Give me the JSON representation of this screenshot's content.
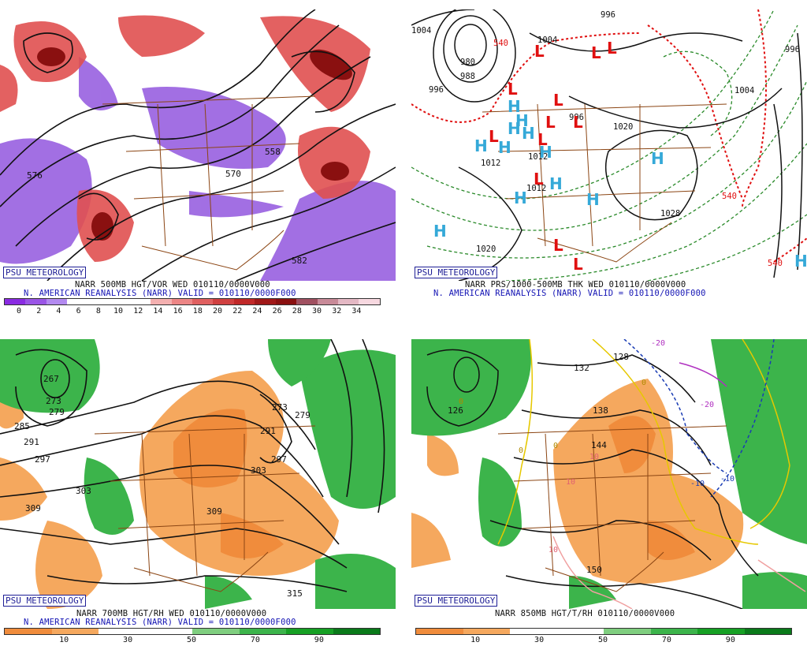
{
  "badge": "PSU METEOROLOGY",
  "panels": [
    {
      "caption": "NARR 500MB HGT/VOR WED 010110/0000V000",
      "subcaption": "N. AMERICAN REANALYSIS (NARR) VALID = 010110/0000F000",
      "scale_ticks": [
        "0",
        "2",
        "4",
        "6",
        "8",
        "10",
        "12",
        "14",
        "16",
        "18",
        "20",
        "22",
        "24",
        "26",
        "28",
        "30",
        "32",
        "34"
      ],
      "contour_labels": [
        "576",
        "558",
        "570",
        "582"
      ]
    },
    {
      "caption": "NARR PRS/1000-500MB THK WED 010110/0000V000",
      "subcaption": "N. AMERICAN REANALYSIS (NARR) VALID = 010110/0000F000",
      "contour_labels": [
        "1004",
        "980",
        "988",
        "996",
        "1004",
        "996",
        "1012",
        "1012",
        "1020",
        "1020",
        "1028",
        "540",
        "540",
        "540",
        "996",
        "1004",
        "996",
        "1012"
      ]
    },
    {
      "caption": "NARR 700MB HGT/RH WED 010110/0000V000",
      "subcaption": "N. AMERICAN REANALYSIS (NARR) VALID = 010110/0000F000",
      "scale_ticks": [
        "10",
        "30",
        "50",
        "70",
        "90"
      ],
      "contour_labels": [
        "267",
        "273",
        "279",
        "285",
        "291",
        "297",
        "303",
        "309",
        "309",
        "303",
        "297",
        "291",
        "273",
        "279",
        "315"
      ]
    },
    {
      "caption": "NARR 850MB HGT/T/RH 010110/0000V000",
      "scale_ticks": [
        "10",
        "30",
        "50",
        "70",
        "90"
      ],
      "contour_labels": [
        "126",
        "132",
        "138",
        "144",
        "150",
        "128",
        "-20",
        "-20",
        "-10",
        "-10",
        "0",
        "0",
        "0",
        "0",
        "10",
        "10",
        "10"
      ]
    }
  ],
  "colors": {
    "vor_scale": [
      "#8a2be2",
      "#9a55e6",
      "#b38af0",
      "#ffffff",
      "#ffffff",
      "#ffffff",
      "#ffffff",
      "#f4b0b0",
      "#ec8585",
      "#e06060",
      "#d04040",
      "#c02828",
      "#a01818",
      "#8a1010",
      "#a05060",
      "#c88a98",
      "#e4b8c4",
      "#f7d8e0"
    ],
    "rh_scale": [
      "#f08c3c",
      "#f5a85e",
      "#ffffff",
      "#ffffff",
      "#7fce7f",
      "#3cb44b",
      "#16a024",
      "#0a7a1a"
    ],
    "high": "#35a9d8",
    "low": "#e01010",
    "border": "#8b4513",
    "badge": "#1e1e96"
  }
}
